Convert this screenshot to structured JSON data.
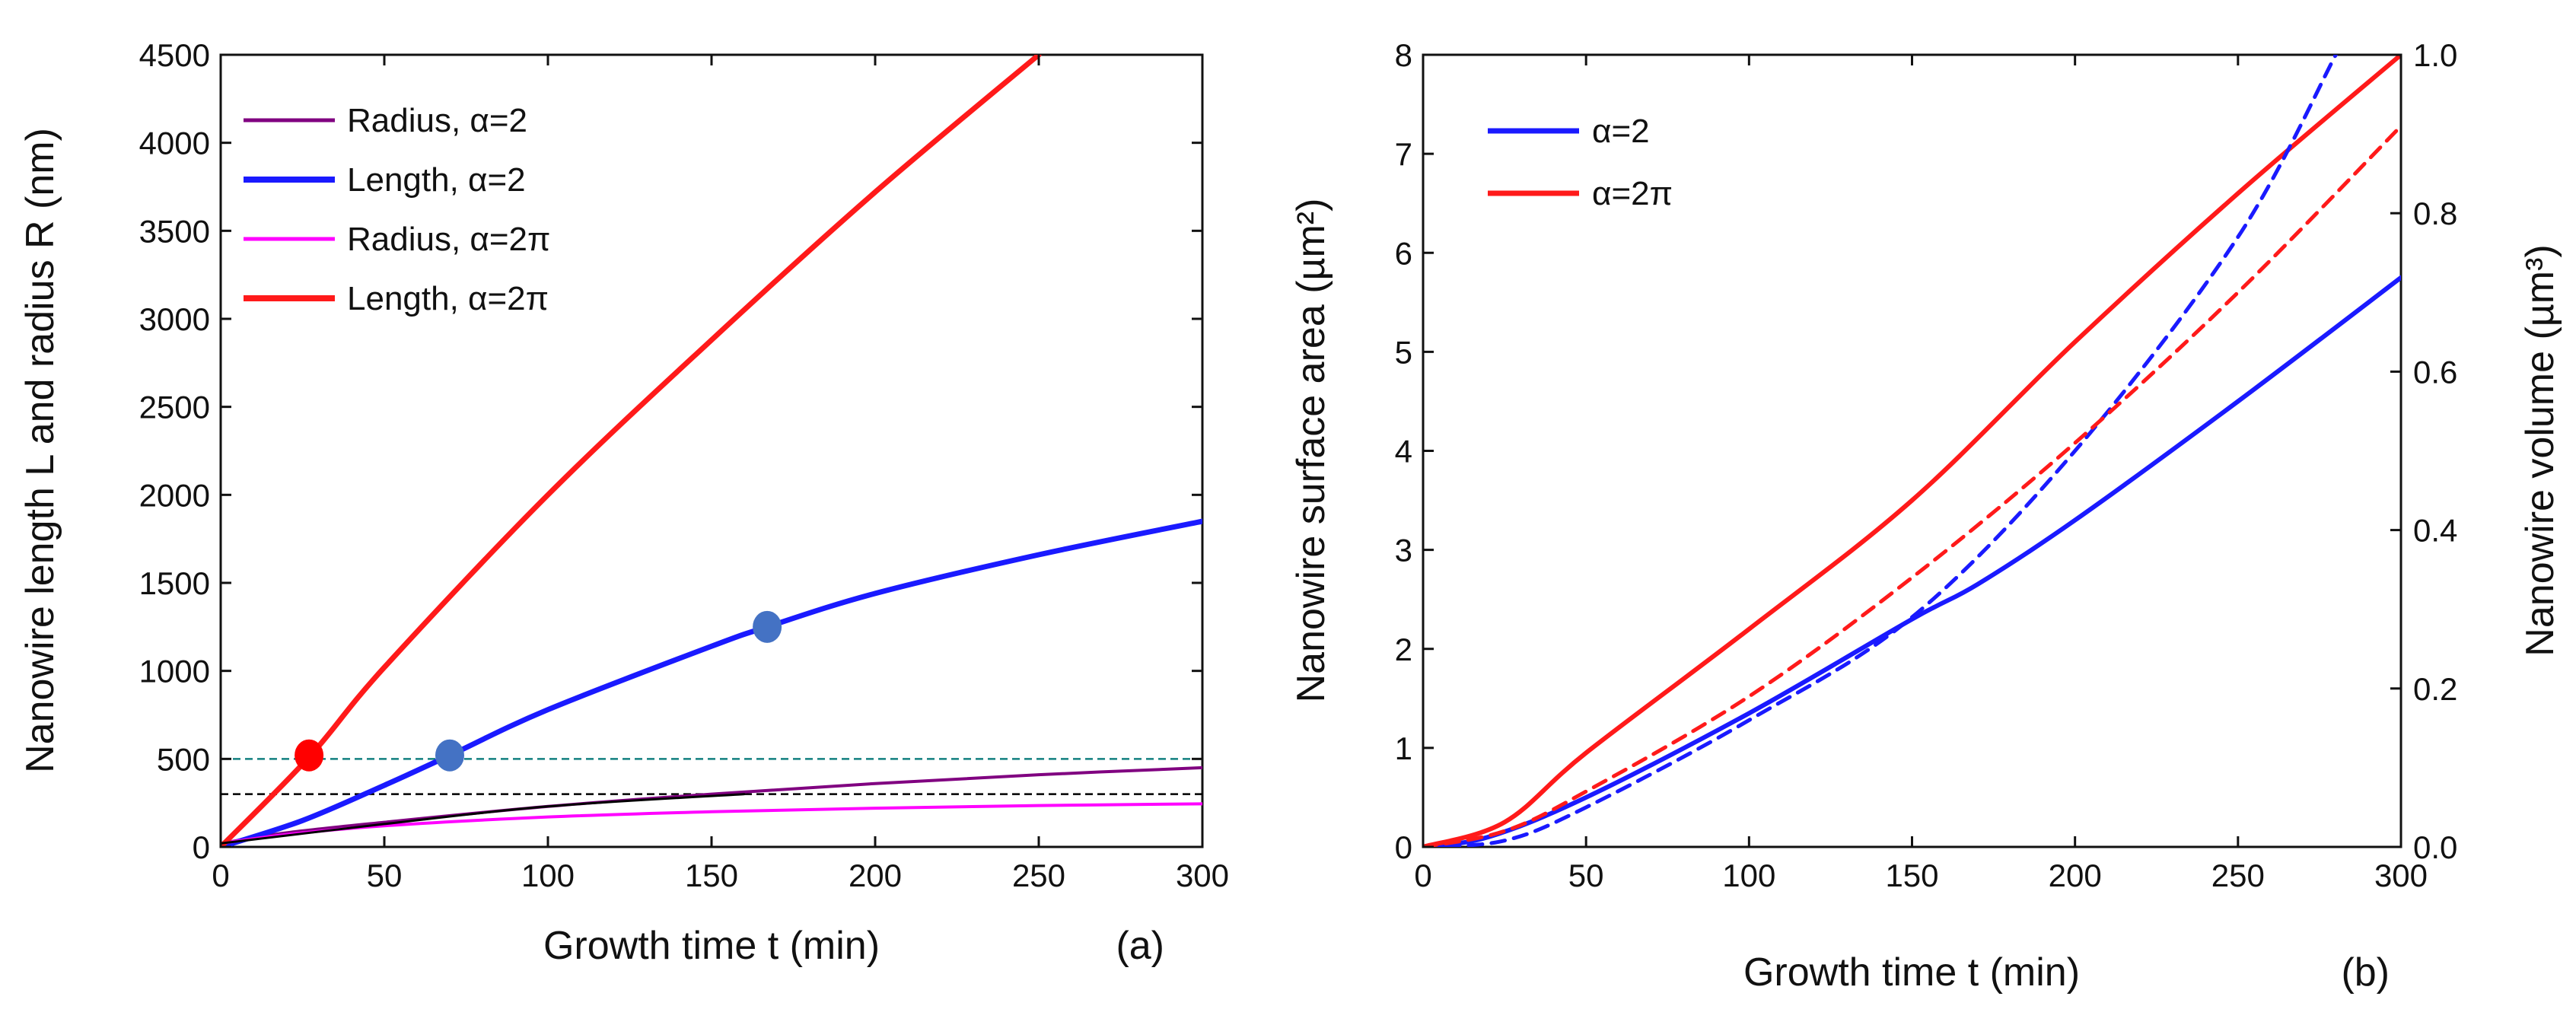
{
  "chart_data": [
    {
      "type": "line",
      "panel_label": "(a)",
      "xlabel": "Growth time t (min)",
      "ylabel": "Nanowire length L and radius R (nm)",
      "xlim": [
        0,
        300
      ],
      "ylim": [
        0,
        4500
      ],
      "xticks": [
        "0",
        "50",
        "100",
        "150",
        "200",
        "250",
        "300"
      ],
      "yticks": [
        "0",
        "500",
        "1000",
        "1500",
        "2000",
        "2500",
        "3000",
        "3500",
        "4000",
        "4500"
      ],
      "legend_position": "top-left",
      "series": [
        {
          "name": "Radius, α=2",
          "color": "#800080",
          "width": 4,
          "x": [
            0,
            20,
            50,
            100,
            150,
            200,
            250,
            300
          ],
          "y": [
            20,
            80,
            140,
            230,
            300,
            360,
            410,
            450
          ]
        },
        {
          "name": "Length, α=2",
          "color": "#1a1aff",
          "width": 7,
          "x": [
            0,
            25,
            50,
            70,
            100,
            150,
            167,
            200,
            250,
            300
          ],
          "y": [
            0,
            150,
            350,
            520,
            780,
            1140,
            1250,
            1440,
            1660,
            1850
          ]
        },
        {
          "name": "Radius, α=2π",
          "color": "#ff00ff",
          "width": 4,
          "x": [
            0,
            20,
            50,
            100,
            150,
            200,
            250,
            300
          ],
          "y": [
            20,
            70,
            120,
            170,
            200,
            220,
            235,
            245
          ]
        },
        {
          "name": "Length, α=2π",
          "color": "#ff1a1a",
          "width": 7,
          "x": [
            0,
            27,
            50,
            100,
            150,
            200,
            250
          ],
          "y": [
            0,
            510,
            1020,
            2000,
            2880,
            3720,
            4500
          ]
        },
        {
          "name": "",
          "color": "#000000",
          "width": 3,
          "x": [
            0,
            50,
            100,
            160
          ],
          "y": [
            20,
            130,
            230,
            300
          ]
        }
      ],
      "reference_lines": [
        {
          "y": 500,
          "color": "#138080",
          "dashed": true
        },
        {
          "y": 300,
          "color": "#000000",
          "dashed": true
        }
      ],
      "markers": [
        {
          "x": 27,
          "y": 520,
          "color": "#ff0000"
        },
        {
          "x": 70,
          "y": 520,
          "color": "#4472c4"
        },
        {
          "x": 167,
          "y": 1250,
          "color": "#4472c4"
        }
      ]
    },
    {
      "type": "line",
      "panel_label": "(b)",
      "xlabel": "Growth time t (min)",
      "ylabel": "Nanowire surface area (µm²)",
      "y2label": "Nanowire volume (µm³)",
      "xlim": [
        0,
        300
      ],
      "ylim": [
        0,
        8
      ],
      "y2lim": [
        0,
        1
      ],
      "xticks": [
        "0",
        "50",
        "100",
        "150",
        "200",
        "250",
        "300"
      ],
      "yticks": [
        "0",
        "1",
        "2",
        "3",
        "4",
        "5",
        "6",
        "7",
        "8"
      ],
      "y2ticks": [
        "0.0",
        "0.2",
        "0.4",
        "0.6",
        "0.8",
        "1.0"
      ],
      "legend_position": "top-left",
      "series": [
        {
          "name": "α=2",
          "color": "#1a1aff",
          "width": 6,
          "axis": "left",
          "x": [
            0,
            20,
            50,
            100,
            150,
            170,
            200,
            250,
            300
          ],
          "y": [
            0,
            0.1,
            0.5,
            1.35,
            2.3,
            2.65,
            3.3,
            4.5,
            5.75
          ]
        },
        {
          "name": "α=2π",
          "color": "#ff1a1a",
          "width": 6,
          "axis": "left",
          "x": [
            0,
            25,
            50,
            100,
            150,
            200,
            250,
            300
          ],
          "y": [
            0,
            0.25,
            0.95,
            2.2,
            3.5,
            5.1,
            6.6,
            8.0
          ]
        },
        {
          "name": "",
          "color": "#1a1aff",
          "width": 5,
          "axis": "right",
          "dashed": true,
          "x": [
            0,
            25,
            50,
            100,
            150,
            200,
            250,
            280
          ],
          "y": [
            0,
            0.008,
            0.05,
            0.16,
            0.29,
            0.5,
            0.77,
            1.0
          ]
        },
        {
          "name": "",
          "color": "#ff1a1a",
          "width": 5,
          "axis": "right",
          "dashed": true,
          "x": [
            0,
            25,
            50,
            100,
            150,
            200,
            250,
            300
          ],
          "y": [
            0,
            0.02,
            0.07,
            0.19,
            0.34,
            0.51,
            0.7,
            0.91
          ]
        }
      ]
    }
  ]
}
